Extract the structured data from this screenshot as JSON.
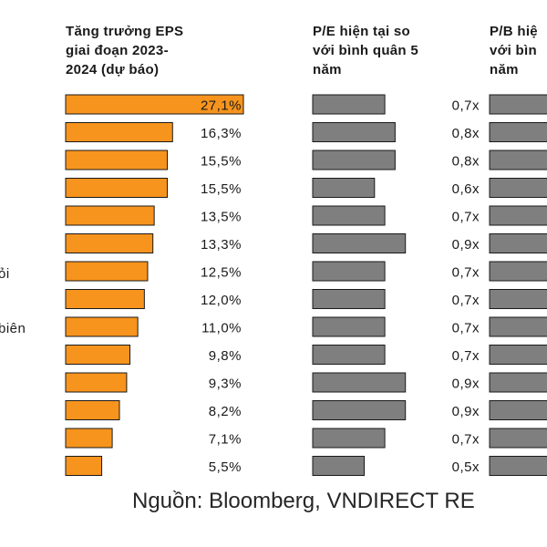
{
  "headers": {
    "eps": [
      "Tăng trưởng EPS",
      "giai đoạn 2023-",
      "2024 (dự báo)"
    ],
    "pe": [
      "P/E hiện tại so",
      "với bình quân 5",
      "năm"
    ],
    "pb": [
      "P/B hiệ",
      "với bìn",
      "năm"
    ]
  },
  "left_fragments": [
    "ỏi",
    "biên"
  ],
  "source": "Nguồn: Bloomberg, VNDIRECT RE",
  "colors": {
    "eps_bar": "#f7941d",
    "pe_bar": "#7f7f7f",
    "bar_stroke": "#1a1a1a"
  },
  "chart_data": [
    {
      "type": "bar",
      "orientation": "horizontal",
      "title": "Tăng trưởng EPS giai đoạn 2023-2024 (dự báo)",
      "values": [
        27.1,
        16.3,
        15.5,
        15.5,
        13.5,
        13.3,
        12.5,
        12.0,
        11.0,
        9.8,
        9.3,
        8.2,
        7.1,
        5.5
      ],
      "labels": [
        "27,1%",
        "16,3%",
        "15,5%",
        "15,5%",
        "13,5%",
        "13,3%",
        "12,5%",
        "12,0%",
        "11,0%",
        "9,8%",
        "9,3%",
        "8,2%",
        "7,1%",
        "5,5%"
      ],
      "xlim": [
        0,
        27.1
      ]
    },
    {
      "type": "bar",
      "orientation": "horizontal",
      "title": "P/E hiện tại so với bình quân 5 năm",
      "values": [
        0.7,
        0.8,
        0.8,
        0.6,
        0.7,
        0.9,
        0.7,
        0.7,
        0.7,
        0.7,
        0.9,
        0.9,
        0.7,
        0.5
      ],
      "labels": [
        "0,7x",
        "0,8x",
        "0,8x",
        "0,6x",
        "0,7x",
        "0,9x",
        "0,7x",
        "0,7x",
        "0,7x",
        "0,7x",
        "0,9x",
        "0,9x",
        "0,7x",
        "0,5x"
      ]
    },
    {
      "type": "bar",
      "orientation": "horizontal",
      "title": "P/B hiệ với bìn năm",
      "values": [],
      "note_visible": "bars cut off at right edge"
    }
  ]
}
